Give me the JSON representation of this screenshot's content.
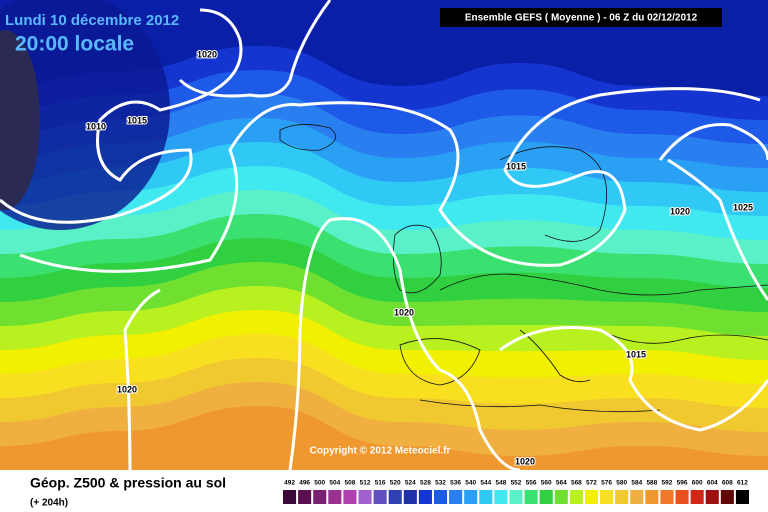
{
  "map": {
    "date": "Lundi 10 décembre 2012",
    "time": "20:00 locale",
    "header": "Ensemble GEFS ( Moyenne )  -  06 Z du 02/12/2012",
    "isobar_labels": [
      "1020",
      "1010",
      "1015",
      "1015",
      "1020",
      "1025",
      "1020",
      "1015",
      "1020",
      "1020"
    ],
    "copyright": "Copyright © 2012 Meteociel.fr"
  },
  "footer": {
    "title": "Géop. Z500 & pression au sol",
    "subtitle": "(+ 204h)"
  },
  "legend": {
    "levels": [
      492,
      496,
      500,
      504,
      508,
      512,
      516,
      520,
      524,
      528,
      532,
      536,
      540,
      544,
      548,
      552,
      556,
      560,
      564,
      568,
      572,
      576,
      580,
      584,
      588,
      592,
      596,
      600,
      604,
      608,
      612
    ],
    "colors": [
      "#3a0a3a",
      "#5a1050",
      "#7a2070",
      "#9a3090",
      "#b040b0",
      "#a060d0",
      "#6050c0",
      "#3040b0",
      "#2030a8",
      "#1535d0",
      "#1e5ae8",
      "#2a7ff0",
      "#2aa0f5",
      "#30c8f5",
      "#40e8f0",
      "#5af0c8",
      "#3ae070",
      "#30d040",
      "#70e030",
      "#b8f020",
      "#f0f000",
      "#f8e020",
      "#f0c830",
      "#f0b040",
      "#f09830",
      "#f07828",
      "#e85020",
      "#d02818",
      "#a01010",
      "#600808",
      "#000000"
    ]
  }
}
